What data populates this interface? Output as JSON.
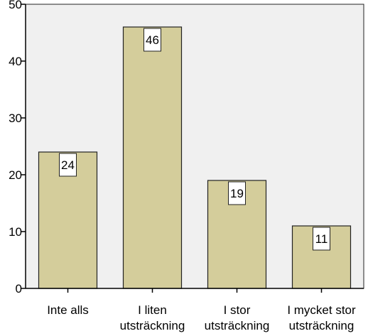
{
  "chart_data": {
    "type": "bar",
    "categories": [
      [
        "Inte alls"
      ],
      [
        "I liten",
        "utsträckning"
      ],
      [
        "I stor",
        "utsträckning"
      ],
      [
        "I mycket stor",
        "utsträckning"
      ]
    ],
    "values": [
      24,
      46,
      19,
      11
    ],
    "data_labels": [
      "24",
      "46",
      "19",
      "11"
    ],
    "title": "",
    "xlabel": "",
    "ylabel": "",
    "ylim": [
      0,
      50
    ],
    "yticks": [
      0,
      10,
      20,
      30,
      40,
      50
    ],
    "ytick_labels": [
      "0",
      "10",
      "20",
      "30",
      "40",
      "50"
    ],
    "grid": false,
    "legend": "none",
    "colors": {
      "plot_background": "#f0f0f0",
      "bar_fill": "#d4cd9b",
      "bar_stroke": "#222222",
      "label_box": "#ffffff"
    }
  }
}
